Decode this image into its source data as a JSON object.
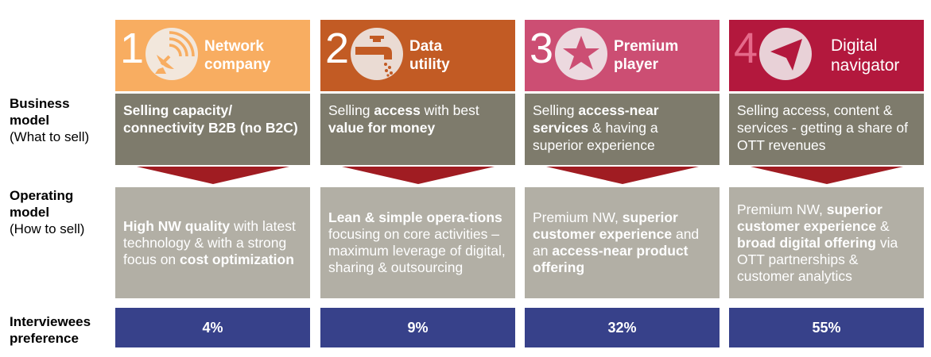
{
  "row_labels": {
    "business": {
      "bold": "Business model",
      "sub": "(What to sell)"
    },
    "operating": {
      "bold": "Operating model",
      "sub": "(How to sell)"
    },
    "preference": {
      "bold": "Interviewees preference"
    }
  },
  "columns": [
    {
      "number": "1",
      "title": "Network company",
      "icon": "satellite-dish-icon",
      "color": "#f8ad61",
      "business_parts": [
        {
          "t": "Selling capacity/ connectivity B2B (no B2C)",
          "b": true
        }
      ],
      "operating_parts": [
        {
          "t": "High NW quality",
          "b": true
        },
        {
          "t": " with latest technology & with a strong focus on ",
          "b": false
        },
        {
          "t": "cost optimization",
          "b": true
        }
      ],
      "preference": "4%"
    },
    {
      "number": "2",
      "title": "Data utility",
      "icon": "water-tap-icon",
      "color": "#c25b24",
      "business_parts": [
        {
          "t": "Selling ",
          "b": false
        },
        {
          "t": "access",
          "b": true
        },
        {
          "t": " with best ",
          "b": false
        },
        {
          "t": "value for money",
          "b": true
        }
      ],
      "operating_parts": [
        {
          "t": "Lean & simple opera-tions",
          "b": true
        },
        {
          "t": " focusing on core activities – maximum leverage of digital, sharing & outsourcing",
          "b": false
        }
      ],
      "preference": "9%"
    },
    {
      "number": "3",
      "title": "Premium player",
      "icon": "star-icon",
      "color": "#cc4e73",
      "business_parts": [
        {
          "t": "Selling ",
          "b": false
        },
        {
          "t": "access-near services",
          "b": true
        },
        {
          "t": " & having a superior experience",
          "b": false
        }
      ],
      "operating_parts": [
        {
          "t": "Premium NW, ",
          "b": false
        },
        {
          "t": "superior customer experience",
          "b": true
        },
        {
          "t": " and an ",
          "b": false
        },
        {
          "t": "access-near product offering",
          "b": true
        }
      ],
      "preference": "32%"
    },
    {
      "number": "4",
      "title": "Digital navigator",
      "icon": "navigation-arrow-icon",
      "color": "#b3183d",
      "business_parts": [
        {
          "t": "Selling access, content & services - getting a share of OTT revenues",
          "b": false
        }
      ],
      "operating_parts": [
        {
          "t": "Premium NW, ",
          "b": false
        },
        {
          "t": "superior customer experience",
          "b": true
        },
        {
          "t": " & ",
          "b": false
        },
        {
          "t": "broad digital offering",
          "b": true
        },
        {
          "t": " via OTT partnerships & customer analytics",
          "b": false
        }
      ],
      "preference": "55%"
    }
  ],
  "colors": {
    "business_bg": "#7e7b6c",
    "operating_bg": "#b2afa5",
    "preference_bg": "#37418a",
    "arrow": "#a01c22"
  }
}
